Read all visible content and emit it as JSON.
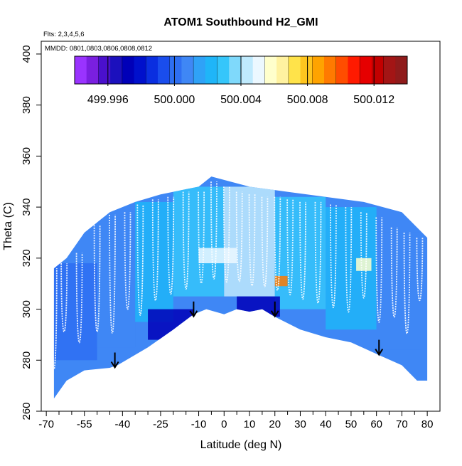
{
  "chart_data": {
    "type": "heatmap",
    "title": "ATOM1 Southbound H2_GMI",
    "annotations": {
      "flights": "Flts: 2,3,4,5,6",
      "dates": "MMDD: 0801,0803,0806,0808,0812"
    },
    "xlabel": "Latitude (deg N)",
    "ylabel": "Theta (C)",
    "xlim": [
      -72,
      85
    ],
    "ylim": [
      260,
      405
    ],
    "x_ticks": [
      -70,
      -55,
      -40,
      -25,
      -10,
      0,
      10,
      20,
      30,
      40,
      50,
      60,
      70,
      80
    ],
    "x_minor_ticks": [
      -65,
      -60,
      -50,
      -45,
      -35,
      -30,
      -20,
      -15,
      -5,
      5,
      15,
      25,
      35,
      45,
      55,
      65,
      75
    ],
    "y_ticks": [
      260,
      280,
      300,
      320,
      340,
      360,
      380,
      400
    ],
    "colorbar": {
      "min": 499.994,
      "max": 500.014,
      "tick_labels": [
        "499.996",
        "500.000",
        "500.004",
        "500.008",
        "500.012"
      ],
      "tick_values": [
        499.996,
        500.0,
        500.004,
        500.008,
        500.012
      ],
      "colors": [
        "#9a33ff",
        "#7a1fe0",
        "#4a10cc",
        "#1b10bd",
        "#0000b8",
        "#0010cc",
        "#0a2ee0",
        "#1a4ded",
        "#2e6ff2",
        "#3f87f5",
        "#2fa2f7",
        "#1fb5f8",
        "#35c6fa",
        "#7fd9fb",
        "#bfeafd",
        "#ecf8ff",
        "#ffffcc",
        "#fff2a0",
        "#ffe34a",
        "#ffc51f",
        "#ffa300",
        "#ff7a00",
        "#ff4d00",
        "#ff1a00",
        "#e60000",
        "#c20000",
        "#a31515",
        "#8f1b1b"
      ]
    },
    "tropopause": [
      {
        "lat": -67,
        "theta": 265
      },
      {
        "lat": -62,
        "theta": 272
      },
      {
        "lat": -55,
        "theta": 276
      },
      {
        "lat": -45,
        "theta": 277
      },
      {
        "lat": -42,
        "theta": 278
      },
      {
        "lat": -30,
        "theta": 285
      },
      {
        "lat": -20,
        "theta": 292
      },
      {
        "lat": -12,
        "theta": 298
      },
      {
        "lat": -7,
        "theta": 300
      },
      {
        "lat": 0,
        "theta": 298
      },
      {
        "lat": 5,
        "theta": 300
      },
      {
        "lat": 10,
        "theta": 299
      },
      {
        "lat": 15,
        "theta": 300
      },
      {
        "lat": 20,
        "theta": 297
      },
      {
        "lat": 30,
        "theta": 292
      },
      {
        "lat": 40,
        "theta": 289
      },
      {
        "lat": 50,
        "theta": 287
      },
      {
        "lat": 61,
        "theta": 282
      },
      {
        "lat": 70,
        "theta": 278
      },
      {
        "lat": 76,
        "theta": 272
      },
      {
        "lat": 80,
        "theta": 272
      }
    ],
    "ceiling": [
      {
        "lat": -67,
        "theta": 316
      },
      {
        "lat": -62,
        "theta": 320
      },
      {
        "lat": -55,
        "theta": 330
      },
      {
        "lat": -45,
        "theta": 338
      },
      {
        "lat": -35,
        "theta": 342
      },
      {
        "lat": -25,
        "theta": 345
      },
      {
        "lat": -10,
        "theta": 348
      },
      {
        "lat": -5,
        "theta": 352
      },
      {
        "lat": 10,
        "theta": 348
      },
      {
        "lat": 25,
        "theta": 346
      },
      {
        "lat": 40,
        "theta": 344
      },
      {
        "lat": 55,
        "theta": 342
      },
      {
        "lat": 70,
        "theta": 338
      },
      {
        "lat": 80,
        "theta": 328
      }
    ],
    "data_blocks": [
      {
        "lat0": -67,
        "lat1": -50,
        "th0": 280,
        "th1": 318,
        "value": 500.0
      },
      {
        "lat0": -50,
        "lat1": -35,
        "th0": 285,
        "th1": 336,
        "value": 500.001
      },
      {
        "lat0": -35,
        "lat1": -20,
        "th0": 295,
        "th1": 342,
        "value": 500.002
      },
      {
        "lat0": -20,
        "lat1": 0,
        "th0": 305,
        "th1": 348,
        "value": 500.003
      },
      {
        "lat0": 0,
        "lat1": 20,
        "th0": 305,
        "th1": 348,
        "value": 500.004
      },
      {
        "lat0": 20,
        "lat1": 40,
        "th0": 300,
        "th1": 344,
        "value": 500.003
      },
      {
        "lat0": 40,
        "lat1": 60,
        "th0": 292,
        "th1": 340,
        "value": 500.002
      },
      {
        "lat0": 60,
        "lat1": 78,
        "th0": 284,
        "th1": 330,
        "value": 500.001
      },
      {
        "lat0": -30,
        "lat1": -12,
        "th0": 288,
        "th1": 300,
        "value": 499.997
      },
      {
        "lat0": 5,
        "lat1": 22,
        "th0": 297,
        "th1": 305,
        "value": 499.997
      },
      {
        "lat0": 20,
        "lat1": 25,
        "th0": 309,
        "th1": 313,
        "value": 500.009
      },
      {
        "lat0": 52,
        "lat1": 58,
        "th0": 315,
        "th1": 320,
        "value": 500.006
      },
      {
        "lat0": -10,
        "lat1": 5,
        "th0": 318,
        "th1": 324,
        "value": 500.005
      }
    ],
    "flight_profiles": [
      {
        "lat": -67,
        "top": 316,
        "bottom": 266
      },
      {
        "lat": -63,
        "top": 318,
        "bottom": 285
      },
      {
        "lat": -57,
        "top": 322,
        "bottom": 278
      },
      {
        "lat": -50,
        "top": 333,
        "bottom": 280
      },
      {
        "lat": -44,
        "top": 337,
        "bottom": 278
      },
      {
        "lat": -38,
        "top": 338,
        "bottom": 290
      },
      {
        "lat": -33,
        "top": 341,
        "bottom": 286
      },
      {
        "lat": -27,
        "top": 343,
        "bottom": 293
      },
      {
        "lat": -21,
        "top": 344,
        "bottom": 296
      },
      {
        "lat": -15,
        "top": 346,
        "bottom": 298
      },
      {
        "lat": -9,
        "top": 346,
        "bottom": 301
      },
      {
        "lat": -4,
        "top": 350,
        "bottom": 302
      },
      {
        "lat": 1,
        "top": 348,
        "bottom": 301
      },
      {
        "lat": 6,
        "top": 346,
        "bottom": 302
      },
      {
        "lat": 11,
        "top": 345,
        "bottom": 300
      },
      {
        "lat": 16,
        "top": 344,
        "bottom": 300
      },
      {
        "lat": 21,
        "top": 344,
        "bottom": 298
      },
      {
        "lat": 26,
        "top": 343,
        "bottom": 296
      },
      {
        "lat": 31,
        "top": 342,
        "bottom": 294
      },
      {
        "lat": 37,
        "top": 342,
        "bottom": 292
      },
      {
        "lat": 43,
        "top": 341,
        "bottom": 290
      },
      {
        "lat": 49,
        "top": 340,
        "bottom": 288
      },
      {
        "lat": 55,
        "top": 338,
        "bottom": 296
      },
      {
        "lat": 61,
        "top": 336,
        "bottom": 284
      },
      {
        "lat": 67,
        "top": 332,
        "bottom": 288
      },
      {
        "lat": 72,
        "top": 330,
        "bottom": 280
      },
      {
        "lat": 77,
        "top": 328,
        "bottom": 298
      }
    ],
    "arrows": [
      {
        "lat": -43,
        "theta": 283,
        "label": "tropopause marker"
      },
      {
        "lat": -12,
        "theta": 303,
        "label": "tropopause marker"
      },
      {
        "lat": 20,
        "theta": 303,
        "label": "tropopause marker"
      },
      {
        "lat": 61,
        "theta": 288,
        "label": "tropopause marker"
      }
    ]
  }
}
